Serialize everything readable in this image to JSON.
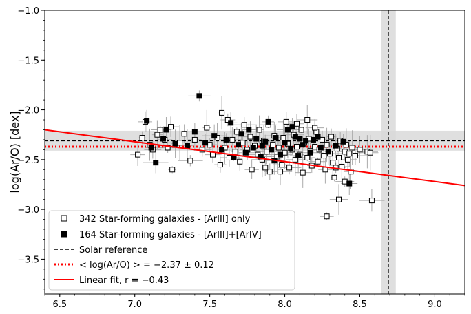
{
  "chart_data": {
    "type": "scatter",
    "title": "",
    "xlabel": "",
    "ylabel": "log(Ar/O) [dex]",
    "xlim": [
      6.4,
      9.2
    ],
    "ylim": [
      -3.85,
      -1.0
    ],
    "x_ticks": [
      6.5,
      7.0,
      7.5,
      8.0,
      8.5,
      9.0
    ],
    "x_tick_labels": [
      "6.5",
      "7.0",
      "7.5",
      "8.0",
      "8.5",
      "9.0"
    ],
    "y_ticks": [
      -1.0,
      -1.5,
      -2.0,
      -2.5,
      -3.0,
      -3.5
    ],
    "y_tick_labels": [
      "−1.0",
      "−1.5",
      "−2.0",
      "−2.5",
      "−3.0",
      "−3.5"
    ],
    "colors": {
      "fit": "#ff0000",
      "mean": "#ff0000",
      "solar": "#000000",
      "band": "#d9d9d9",
      "errorbar": "#aaaaaa"
    },
    "solar_reference": {
      "x": 8.69,
      "x_band": [
        8.64,
        8.74
      ],
      "y": -2.31,
      "y_band": [
        -2.41,
        -2.21
      ]
    },
    "mean_line": {
      "y": -2.37
    },
    "linear_fit": {
      "slope": -0.2,
      "intercept": -0.92
    },
    "legend": {
      "position": "lower-left",
      "entries": [
        {
          "label": "342 Star-forming galaxies - [ArIII] only",
          "marker": "open-square"
        },
        {
          "label": "164 Star-forming galaxies - [ArIII]+[ArIV]",
          "marker": "filled-square"
        },
        {
          "label": "Solar reference",
          "marker": "dashed-black"
        },
        {
          "label": "< log(Ar/O) > = −2.37 ± 0.12",
          "marker": "dotted-red"
        },
        {
          "label": "Linear fit, r = −0.43",
          "marker": "solid-red"
        }
      ]
    },
    "series": [
      {
        "name": "342 Star-forming galaxies - [ArIII] only",
        "marker": "open-square",
        "points": [
          [
            7.02,
            -2.45
          ],
          [
            7.05,
            -2.28
          ],
          [
            7.07,
            -2.12
          ],
          [
            7.1,
            -2.35
          ],
          [
            7.12,
            -2.4
          ],
          [
            7.15,
            -2.25
          ],
          [
            7.17,
            -2.2
          ],
          [
            7.2,
            -2.3
          ],
          [
            7.22,
            -2.38
          ],
          [
            7.24,
            -2.17
          ],
          [
            7.25,
            -2.6
          ],
          [
            7.3,
            -2.33
          ],
          [
            7.33,
            -2.24
          ],
          [
            7.37,
            -2.51
          ],
          [
            7.4,
            -2.3
          ],
          [
            7.45,
            -2.4
          ],
          [
            7.48,
            -2.18
          ],
          [
            7.5,
            -2.35
          ],
          [
            7.52,
            -2.45
          ],
          [
            7.55,
            -2.28
          ],
          [
            7.57,
            -2.55
          ],
          [
            7.58,
            -2.03
          ],
          [
            7.6,
            -2.38
          ],
          [
            7.62,
            -2.1
          ],
          [
            7.63,
            -2.48
          ],
          [
            7.65,
            -2.3
          ],
          [
            7.67,
            -2.42
          ],
          [
            7.68,
            -2.22
          ],
          [
            7.7,
            -2.52
          ],
          [
            7.72,
            -2.33
          ],
          [
            7.73,
            -2.15
          ],
          [
            7.75,
            -2.4
          ],
          [
            7.77,
            -2.27
          ],
          [
            7.78,
            -2.6
          ],
          [
            7.8,
            -2.36
          ],
          [
            7.82,
            -2.45
          ],
          [
            7.83,
            -2.2
          ],
          [
            7.85,
            -2.5
          ],
          [
            7.86,
            -2.31
          ],
          [
            7.88,
            -2.42
          ],
          [
            7.89,
            -2.15
          ],
          [
            7.9,
            -2.62
          ],
          [
            7.92,
            -2.35
          ],
          [
            7.93,
            -2.26
          ],
          [
            7.95,
            -2.47
          ],
          [
            7.96,
            -2.38
          ],
          [
            7.98,
            -2.55
          ],
          [
            7.99,
            -2.28
          ],
          [
            8.0,
            -2.43
          ],
          [
            8.01,
            -2.12
          ],
          [
            8.02,
            -2.34
          ],
          [
            8.03,
            -2.58
          ],
          [
            8.05,
            -2.4
          ],
          [
            8.06,
            -2.25
          ],
          [
            8.07,
            -2.5
          ],
          [
            8.08,
            -2.37
          ],
          [
            8.1,
            -2.45
          ],
          [
            8.11,
            -2.2
          ],
          [
            8.12,
            -2.63
          ],
          [
            8.13,
            -2.33
          ],
          [
            8.15,
            -2.48
          ],
          [
            8.16,
            -2.29
          ],
          [
            8.17,
            -2.41
          ],
          [
            8.18,
            -2.56
          ],
          [
            8.2,
            -2.37
          ],
          [
            8.21,
            -2.22
          ],
          [
            8.22,
            -2.52
          ],
          [
            8.23,
            -2.4
          ],
          [
            8.25,
            -2.3
          ],
          [
            8.26,
            -2.46
          ],
          [
            8.27,
            -2.6
          ],
          [
            8.28,
            -2.35
          ],
          [
            8.3,
            -2.44
          ],
          [
            8.31,
            -2.27
          ],
          [
            8.32,
            -2.53
          ],
          [
            8.33,
            -2.68
          ],
          [
            8.35,
            -2.39
          ],
          [
            8.36,
            -2.48
          ],
          [
            8.37,
            -2.31
          ],
          [
            8.38,
            -2.57
          ],
          [
            8.4,
            -2.42
          ],
          [
            8.41,
            -2.35
          ],
          [
            8.42,
            -2.5
          ],
          [
            8.43,
            -2.44
          ],
          [
            8.45,
            -2.38
          ],
          [
            8.47,
            -2.46
          ],
          [
            8.5,
            -2.4
          ],
          [
            8.55,
            -2.42
          ],
          [
            8.57,
            -2.43
          ],
          [
            8.36,
            -2.9
          ],
          [
            8.28,
            -3.07
          ],
          [
            8.58,
            -2.91
          ],
          [
            8.2,
            -2.18
          ],
          [
            8.15,
            -2.1
          ],
          [
            8.08,
            -2.14
          ],
          [
            7.97,
            -2.62
          ],
          [
            7.87,
            -2.58
          ],
          [
            8.44,
            -2.62
          ],
          [
            8.4,
            -2.72
          ],
          [
            8.34,
            -2.58
          ]
        ]
      },
      {
        "name": "164 Star-forming galaxies - [ArIII]+[ArIV]",
        "marker": "filled-square",
        "points": [
          [
            7.08,
            -2.11
          ],
          [
            7.11,
            -2.38
          ],
          [
            7.14,
            -2.53
          ],
          [
            7.19,
            -2.29
          ],
          [
            7.21,
            -2.2
          ],
          [
            7.27,
            -2.34
          ],
          [
            7.35,
            -2.36
          ],
          [
            7.4,
            -2.22
          ],
          [
            7.43,
            -1.86
          ],
          [
            7.47,
            -2.33
          ],
          [
            7.53,
            -2.26
          ],
          [
            7.58,
            -2.4
          ],
          [
            7.61,
            -2.3
          ],
          [
            7.64,
            -2.13
          ],
          [
            7.66,
            -2.48
          ],
          [
            7.69,
            -2.35
          ],
          [
            7.71,
            -2.24
          ],
          [
            7.74,
            -2.43
          ],
          [
            7.76,
            -2.2
          ],
          [
            7.79,
            -2.38
          ],
          [
            7.81,
            -2.29
          ],
          [
            7.84,
            -2.47
          ],
          [
            7.87,
            -2.32
          ],
          [
            7.89,
            -2.12
          ],
          [
            7.91,
            -2.4
          ],
          [
            7.94,
            -2.28
          ],
          [
            7.97,
            -2.45
          ],
          [
            8.0,
            -2.33
          ],
          [
            8.02,
            -2.2
          ],
          [
            8.04,
            -2.39
          ],
          [
            8.07,
            -2.27
          ],
          [
            8.09,
            -2.46
          ],
          [
            8.12,
            -2.35
          ],
          [
            8.14,
            -2.31
          ],
          [
            8.17,
            -2.43
          ],
          [
            8.19,
            -2.3
          ],
          [
            8.24,
            -2.38
          ],
          [
            8.29,
            -2.42
          ],
          [
            8.34,
            -2.36
          ],
          [
            8.39,
            -2.32
          ],
          [
            8.43,
            -2.74
          ],
          [
            8.05,
            -2.17
          ],
          [
            7.93,
            -2.51
          ],
          [
            8.1,
            -2.29
          ],
          [
            7.85,
            -2.36
          ],
          [
            8.22,
            -2.27
          ]
        ]
      }
    ]
  }
}
